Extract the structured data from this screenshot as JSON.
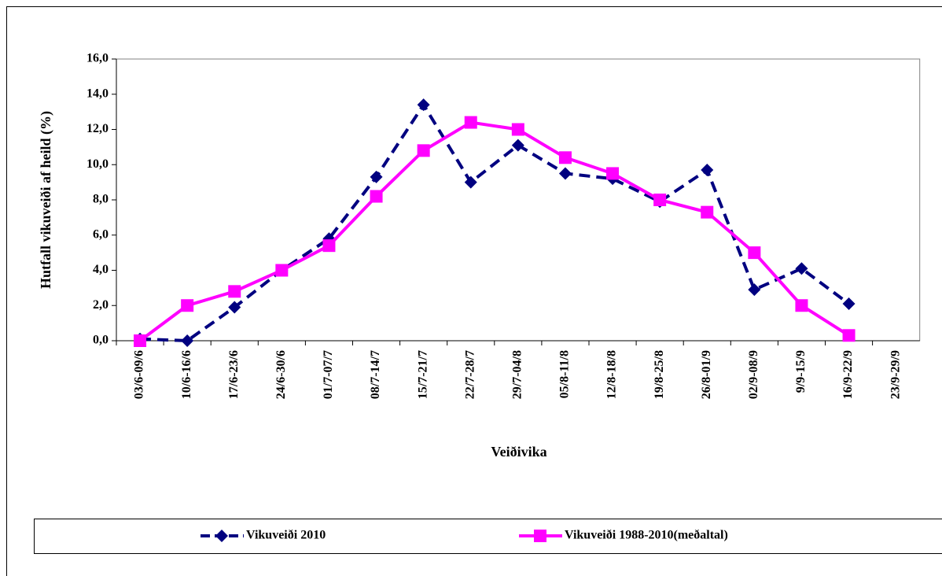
{
  "chart_data": {
    "type": "line",
    "x_label": "Veiðivika",
    "y_label": "Hutfall vikuveiði af heild (%)",
    "categories": [
      "03/6-09/6",
      "10/6-16/6",
      "17/6-23/6",
      "24/6-30/6",
      "01/7-07/7",
      "08/7-14/7",
      "15/7-21/7",
      "22/7-28/7",
      "29/7-04/8",
      "05/8-11/8",
      "12/8-18/8",
      "19/8-25/8",
      "26/8-01/9",
      "02/9-08/9",
      "9/9-15/9",
      "16/9-22/9",
      "23/9-29/9"
    ],
    "series": [
      {
        "name": "Vikuveiði 2010",
        "color": "#000080",
        "dashed": true,
        "marker": "diamond",
        "values": [
          0.1,
          0.0,
          1.9,
          4.0,
          5.8,
          9.3,
          13.4,
          9.0,
          11.1,
          9.5,
          9.2,
          7.9,
          9.7,
          2.9,
          4.1,
          2.1,
          null
        ]
      },
      {
        "name": "Vikuveiði 1988-2010(meðaltal)",
        "color": "#ff00ff",
        "dashed": false,
        "marker": "square",
        "values": [
          0.0,
          2.0,
          2.8,
          4.0,
          5.4,
          8.2,
          10.8,
          12.4,
          12.0,
          10.4,
          9.5,
          8.0,
          7.3,
          5.0,
          2.0,
          0.3,
          null
        ]
      }
    ],
    "ylim": [
      0,
      16
    ],
    "yticks": [
      {
        "value": 0,
        "label": "0,0"
      },
      {
        "value": 2,
        "label": "2,0"
      },
      {
        "value": 4,
        "label": "4,0"
      },
      {
        "value": 6,
        "label": "6,0"
      },
      {
        "value": 8,
        "label": "8,0"
      },
      {
        "value": 10,
        "label": "10,0"
      },
      {
        "value": 12,
        "label": "12,0"
      },
      {
        "value": 14,
        "label": "14,0"
      },
      {
        "value": 16,
        "label": "16,0"
      }
    ],
    "legend": "bottom"
  }
}
